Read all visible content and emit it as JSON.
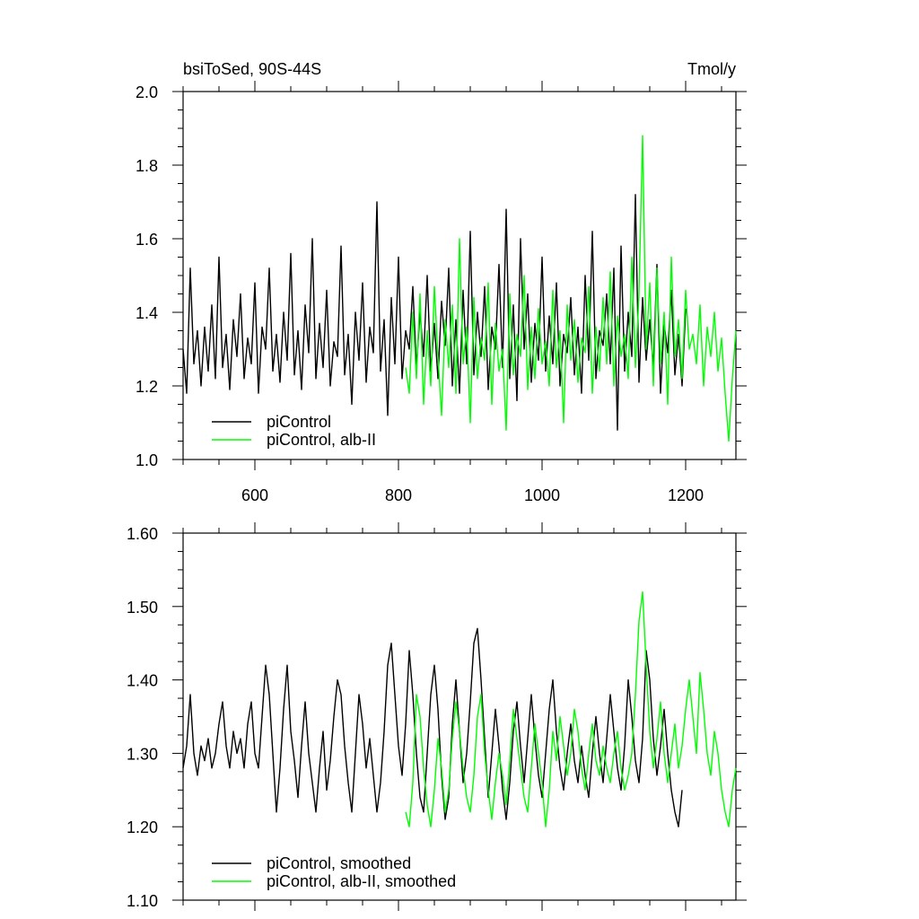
{
  "chart_data": [
    {
      "type": "line",
      "title_left": "bsiToSed, 90S-44S",
      "title_right": "Tmol/y",
      "xlim": [
        500,
        1270
      ],
      "ylim": [
        1.0,
        2.0
      ],
      "x_ticks": [
        600,
        800,
        1000,
        1200
      ],
      "x_tick_labels": [
        "600",
        "800",
        "1000",
        "1200"
      ],
      "y_ticks": [
        1.0,
        1.2,
        1.4,
        1.6,
        1.8,
        2.0
      ],
      "y_tick_labels": [
        "1.0",
        "1.2",
        "1.4",
        "1.6",
        "1.8",
        "2.0"
      ],
      "legend_position": "bottom-left",
      "series": [
        {
          "name": "piControl",
          "color": "#000000",
          "x_start": 500,
          "x_end": 1200,
          "x_step": 5,
          "values": [
            1.3,
            1.18,
            1.52,
            1.26,
            1.35,
            1.2,
            1.36,
            1.24,
            1.42,
            1.22,
            1.55,
            1.25,
            1.34,
            1.19,
            1.38,
            1.28,
            1.45,
            1.22,
            1.33,
            1.26,
            1.48,
            1.18,
            1.36,
            1.3,
            1.52,
            1.24,
            1.34,
            1.21,
            1.4,
            1.27,
            1.56,
            1.23,
            1.35,
            1.19,
            1.42,
            1.29,
            1.6,
            1.22,
            1.37,
            1.25,
            1.46,
            1.2,
            1.32,
            1.28,
            1.58,
            1.23,
            1.34,
            1.15,
            1.4,
            1.27,
            1.48,
            1.21,
            1.36,
            1.29,
            1.7,
            1.24,
            1.38,
            1.12,
            1.44,
            1.26,
            1.55,
            1.22,
            1.35,
            1.3,
            1.47,
            1.25,
            1.4,
            1.28,
            1.5,
            1.24,
            1.37,
            1.22,
            1.43,
            1.31,
            1.52,
            1.2,
            1.38,
            1.18,
            1.46,
            1.26,
            1.62,
            1.23,
            1.4,
            1.28,
            1.47,
            1.19,
            1.36,
            1.3,
            1.53,
            1.25,
            1.68,
            1.22,
            1.42,
            1.16,
            1.6,
            1.3,
            1.45,
            1.21,
            1.37,
            1.27,
            1.55,
            1.24,
            1.39,
            1.26,
            1.48,
            1.2,
            1.34,
            1.29,
            1.44,
            1.23,
            1.36,
            1.18,
            1.5,
            1.27,
            1.62,
            1.22,
            1.35,
            1.31,
            1.45,
            1.26,
            1.52,
            1.08,
            1.58,
            1.24,
            1.4,
            1.28,
            1.72,
            1.21,
            1.44,
            1.27,
            1.38,
            1.25,
            1.53,
            1.18,
            1.37,
            1.29,
            1.46,
            1.23,
            1.34,
            1.2,
            1.41
          ]
        },
        {
          "name": "piControl, alb-II",
          "color": "#00ff00",
          "x_start": 810,
          "x_end": 1270,
          "x_step": 5,
          "values": [
            1.25,
            1.18,
            1.4,
            1.22,
            1.45,
            1.15,
            1.35,
            1.2,
            1.47,
            1.28,
            1.12,
            1.38,
            1.25,
            1.42,
            1.18,
            1.6,
            1.26,
            1.36,
            1.1,
            1.44,
            1.22,
            1.33,
            1.27,
            1.48,
            1.15,
            1.37,
            1.24,
            1.3,
            1.08,
            1.45,
            1.23,
            1.34,
            1.28,
            1.5,
            1.19,
            1.36,
            1.22,
            1.41,
            1.26,
            1.32,
            1.2,
            1.46,
            1.25,
            1.35,
            1.1,
            1.42,
            1.27,
            1.38,
            1.21,
            1.33,
            1.29,
            1.47,
            1.18,
            1.36,
            1.24,
            1.44,
            1.26,
            1.51,
            1.2,
            1.39,
            1.28,
            1.34,
            1.22,
            1.55,
            1.25,
            1.45,
            1.88,
            1.3,
            1.48,
            1.2,
            1.52,
            1.26,
            1.4,
            1.15,
            1.55,
            1.28,
            1.38,
            1.22,
            1.46,
            1.3,
            1.34,
            1.26,
            1.42,
            1.2,
            1.36,
            1.28,
            1.4,
            1.24,
            1.33,
            1.18,
            1.05,
            1.22,
            1.35
          ]
        }
      ]
    },
    {
      "type": "line",
      "xlim": [
        500,
        1270
      ],
      "ylim": [
        1.1,
        1.6
      ],
      "x_ticks": [
        600,
        800,
        1000,
        1200
      ],
      "y_ticks": [
        1.1,
        1.2,
        1.3,
        1.4,
        1.5,
        1.6
      ],
      "y_tick_labels": [
        "1.10",
        "1.20",
        "1.30",
        "1.40",
        "1.50",
        "1.60"
      ],
      "legend_position": "bottom-left",
      "series": [
        {
          "name": "piControl, smoothed",
          "color": "#000000",
          "x_start": 500,
          "x_end": 1200,
          "x_step": 5,
          "values": [
            1.28,
            1.31,
            1.38,
            1.3,
            1.27,
            1.31,
            1.29,
            1.32,
            1.28,
            1.3,
            1.34,
            1.37,
            1.31,
            1.28,
            1.33,
            1.3,
            1.32,
            1.28,
            1.34,
            1.37,
            1.3,
            1.28,
            1.35,
            1.42,
            1.38,
            1.3,
            1.22,
            1.28,
            1.36,
            1.42,
            1.33,
            1.29,
            1.24,
            1.31,
            1.37,
            1.3,
            1.26,
            1.22,
            1.28,
            1.33,
            1.25,
            1.29,
            1.35,
            1.4,
            1.38,
            1.31,
            1.26,
            1.22,
            1.3,
            1.38,
            1.34,
            1.28,
            1.32,
            1.27,
            1.22,
            1.26,
            1.33,
            1.42,
            1.45,
            1.38,
            1.31,
            1.27,
            1.34,
            1.44,
            1.38,
            1.3,
            1.24,
            1.22,
            1.3,
            1.38,
            1.42,
            1.36,
            1.27,
            1.21,
            1.24,
            1.34,
            1.4,
            1.33,
            1.26,
            1.3,
            1.37,
            1.45,
            1.47,
            1.4,
            1.32,
            1.24,
            1.3,
            1.36,
            1.31,
            1.25,
            1.21,
            1.26,
            1.33,
            1.37,
            1.31,
            1.26,
            1.32,
            1.38,
            1.32,
            1.27,
            1.24,
            1.3,
            1.36,
            1.4,
            1.33,
            1.28,
            1.25,
            1.3,
            1.34,
            1.29,
            1.26,
            1.31,
            1.27,
            1.24,
            1.3,
            1.35,
            1.3,
            1.26,
            1.32,
            1.38,
            1.33,
            1.28,
            1.25,
            1.31,
            1.4,
            1.35,
            1.29,
            1.26,
            1.32,
            1.44,
            1.4,
            1.32,
            1.27,
            1.31,
            1.36,
            1.3,
            1.25,
            1.22,
            1.2,
            1.25
          ]
        },
        {
          "name": "piControl, alb-II, smoothed",
          "color": "#00ff00",
          "x_start": 810,
          "x_end": 1270,
          "x_step": 5,
          "values": [
            1.22,
            1.2,
            1.26,
            1.38,
            1.35,
            1.28,
            1.23,
            1.2,
            1.25,
            1.32,
            1.28,
            1.22,
            1.25,
            1.32,
            1.37,
            1.33,
            1.28,
            1.24,
            1.22,
            1.27,
            1.35,
            1.38,
            1.3,
            1.25,
            1.21,
            1.26,
            1.3,
            1.27,
            1.23,
            1.29,
            1.36,
            1.32,
            1.28,
            1.24,
            1.22,
            1.28,
            1.34,
            1.3,
            1.26,
            1.2,
            1.25,
            1.33,
            1.29,
            1.35,
            1.31,
            1.27,
            1.3,
            1.36,
            1.33,
            1.28,
            1.25,
            1.3,
            1.34,
            1.29,
            1.27,
            1.31,
            1.28,
            1.26,
            1.3,
            1.33,
            1.28,
            1.25,
            1.27,
            1.3,
            1.38,
            1.48,
            1.52,
            1.42,
            1.33,
            1.28,
            1.32,
            1.37,
            1.3,
            1.26,
            1.3,
            1.34,
            1.28,
            1.31,
            1.36,
            1.4,
            1.35,
            1.3,
            1.41,
            1.36,
            1.3,
            1.27,
            1.33,
            1.3,
            1.25,
            1.22,
            1.2,
            1.25,
            1.28
          ]
        }
      ]
    }
  ]
}
